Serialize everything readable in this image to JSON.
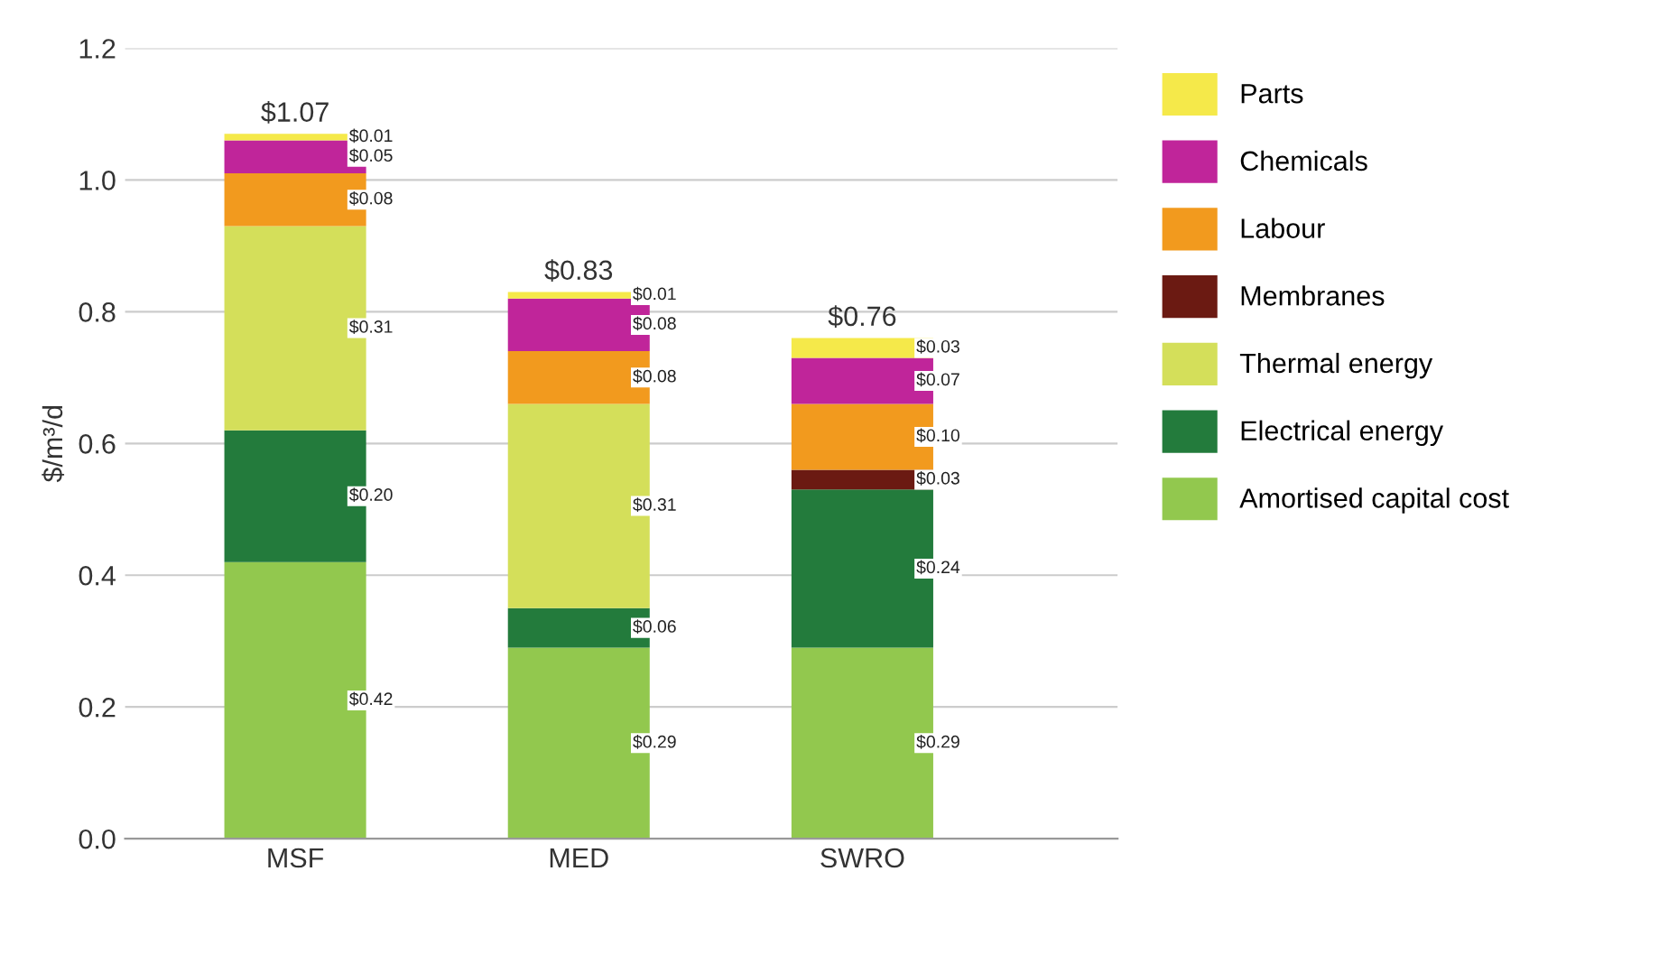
{
  "chart_data": {
    "type": "bar",
    "stacked": true,
    "ylabel": "$/m³/d",
    "categories": [
      "MSF",
      "MED",
      "SWRO"
    ],
    "ylim": [
      0,
      1.2
    ],
    "yticks": [
      {
        "value": 0,
        "label": "0.0"
      },
      {
        "value": 0.2,
        "label": "0.2"
      },
      {
        "value": 0.4,
        "label": "0.4"
      },
      {
        "value": 0.6,
        "label": "0.6"
      },
      {
        "value": 0.8,
        "label": "0.8"
      },
      {
        "value": 1.0,
        "label": "1.0"
      },
      {
        "value": 1.2,
        "label": "1.2"
      }
    ],
    "grid": "y",
    "legend": "right",
    "series": [
      {
        "name": "Amortised capital cost",
        "color": "#92c84e",
        "values": [
          0.42,
          0.29,
          0.29
        ],
        "value_labels": [
          "$0.42",
          "$0.29",
          "$0.29"
        ]
      },
      {
        "name": "Electrical energy",
        "color": "#237b3c",
        "values": [
          0.2,
          0.06,
          0.24
        ],
        "value_labels": [
          "$0.20",
          "$0.06",
          "$0.24"
        ]
      },
      {
        "name": "Thermal energy",
        "color": "#d4df5a",
        "values": [
          0.31,
          0.31,
          0
        ],
        "value_labels": [
          "$0.31",
          "$0.31",
          null
        ]
      },
      {
        "name": "Membranes",
        "color": "#6b1a12",
        "values": [
          0,
          0,
          0.03
        ],
        "value_labels": [
          null,
          null,
          "$0.03"
        ]
      },
      {
        "name": "Labour",
        "color": "#f29a1e",
        "values": [
          0.08,
          0.08,
          0.1
        ],
        "value_labels": [
          "$0.08",
          "$0.08",
          "$0.10"
        ]
      },
      {
        "name": "Chemicals",
        "color": "#c0259a",
        "values": [
          0.05,
          0.08,
          0.07
        ],
        "value_labels": [
          "$0.05",
          "$0.08",
          "$0.07"
        ]
      },
      {
        "name": "Parts",
        "color": "#f5e94a",
        "values": [
          0.01,
          0.01,
          0.03
        ],
        "value_labels": [
          "$0.01",
          "$0.01",
          "$0.03"
        ]
      }
    ],
    "totals": [
      "$1.07",
      "$0.83",
      "$0.76"
    ]
  }
}
